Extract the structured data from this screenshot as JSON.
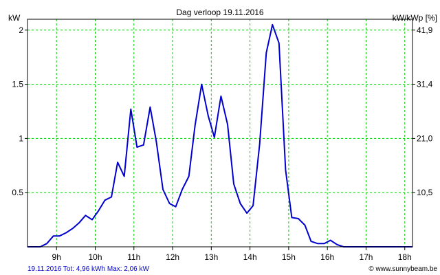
{
  "chart_data": {
    "type": "line",
    "title": "Dag  verloop 19.11.2016",
    "ylabel_left": "kW",
    "ylabel_right": "kW/kWp [%]",
    "ylim": [
      0,
      2.1
    ],
    "xlim": [
      8.25,
      18.2
    ],
    "grid": true,
    "y_ticks": [
      {
        "value": 0.5,
        "label": "0.5"
      },
      {
        "value": 1,
        "label": "1"
      },
      {
        "value": 1.5,
        "label": "1.5"
      },
      {
        "value": 2,
        "label": "2"
      }
    ],
    "y_ticks_right": [
      {
        "value": 0.5,
        "label": "10,5"
      },
      {
        "value": 1,
        "label": "21,0"
      },
      {
        "value": 1.5,
        "label": "31,4"
      },
      {
        "value": 2,
        "label": "41,9"
      }
    ],
    "x_ticks": [
      {
        "value": 9,
        "label": "9h"
      },
      {
        "value": 10,
        "label": "10h"
      },
      {
        "value": 11,
        "label": "11h"
      },
      {
        "value": 12,
        "label": "12h"
      },
      {
        "value": 13,
        "label": "13h"
      },
      {
        "value": 14,
        "label": "14h"
      },
      {
        "value": 15,
        "label": "15h"
      },
      {
        "value": 16,
        "label": "16h"
      },
      {
        "value": 17,
        "label": "17h"
      },
      {
        "value": 18,
        "label": "18h"
      }
    ],
    "series": [
      {
        "color": "#0000cc",
        "x": [
          8.25,
          8.42,
          8.58,
          8.75,
          8.92,
          9.08,
          9.25,
          9.42,
          9.58,
          9.75,
          9.92,
          10.08,
          10.25,
          10.42,
          10.58,
          10.75,
          10.92,
          11.08,
          11.25,
          11.42,
          11.58,
          11.75,
          11.92,
          12.08,
          12.25,
          12.42,
          12.58,
          12.75,
          12.92,
          13.08,
          13.25,
          13.42,
          13.58,
          13.75,
          13.92,
          14.08,
          14.25,
          14.42,
          14.58,
          14.75,
          14.92,
          15.08,
          15.25,
          15.42,
          15.58,
          15.75,
          15.92,
          16.08,
          16.25,
          16.42,
          16.58,
          16.75,
          16.92,
          17.08,
          17.25,
          17.42,
          17.58,
          17.75,
          17.92,
          18.08,
          18.2
        ],
        "values": [
          0.0,
          0.0,
          0.0,
          0.03,
          0.1,
          0.1,
          0.13,
          0.17,
          0.22,
          0.29,
          0.25,
          0.33,
          0.43,
          0.46,
          0.78,
          0.65,
          1.27,
          0.92,
          0.94,
          1.29,
          0.97,
          0.53,
          0.4,
          0.37,
          0.53,
          0.65,
          1.12,
          1.5,
          1.21,
          1.01,
          1.39,
          1.13,
          0.58,
          0.4,
          0.31,
          0.38,
          0.95,
          1.79,
          2.05,
          1.88,
          0.71,
          0.27,
          0.26,
          0.2,
          0.05,
          0.03,
          0.03,
          0.06,
          0.02,
          0.0,
          0.0,
          0.0,
          0.0,
          0.0,
          0.0,
          0.0,
          0.0,
          0.0,
          0.0,
          0.0,
          0.0
        ]
      }
    ]
  },
  "footer": {
    "summary": "19.11.2016 Tot: 4,96 kWh Max: 2,06 kW",
    "summary_color": "#0000cc",
    "credit": "© www.sunnybeam.be"
  },
  "colors": {
    "grid": "#00cc00",
    "axis": "#000000"
  }
}
